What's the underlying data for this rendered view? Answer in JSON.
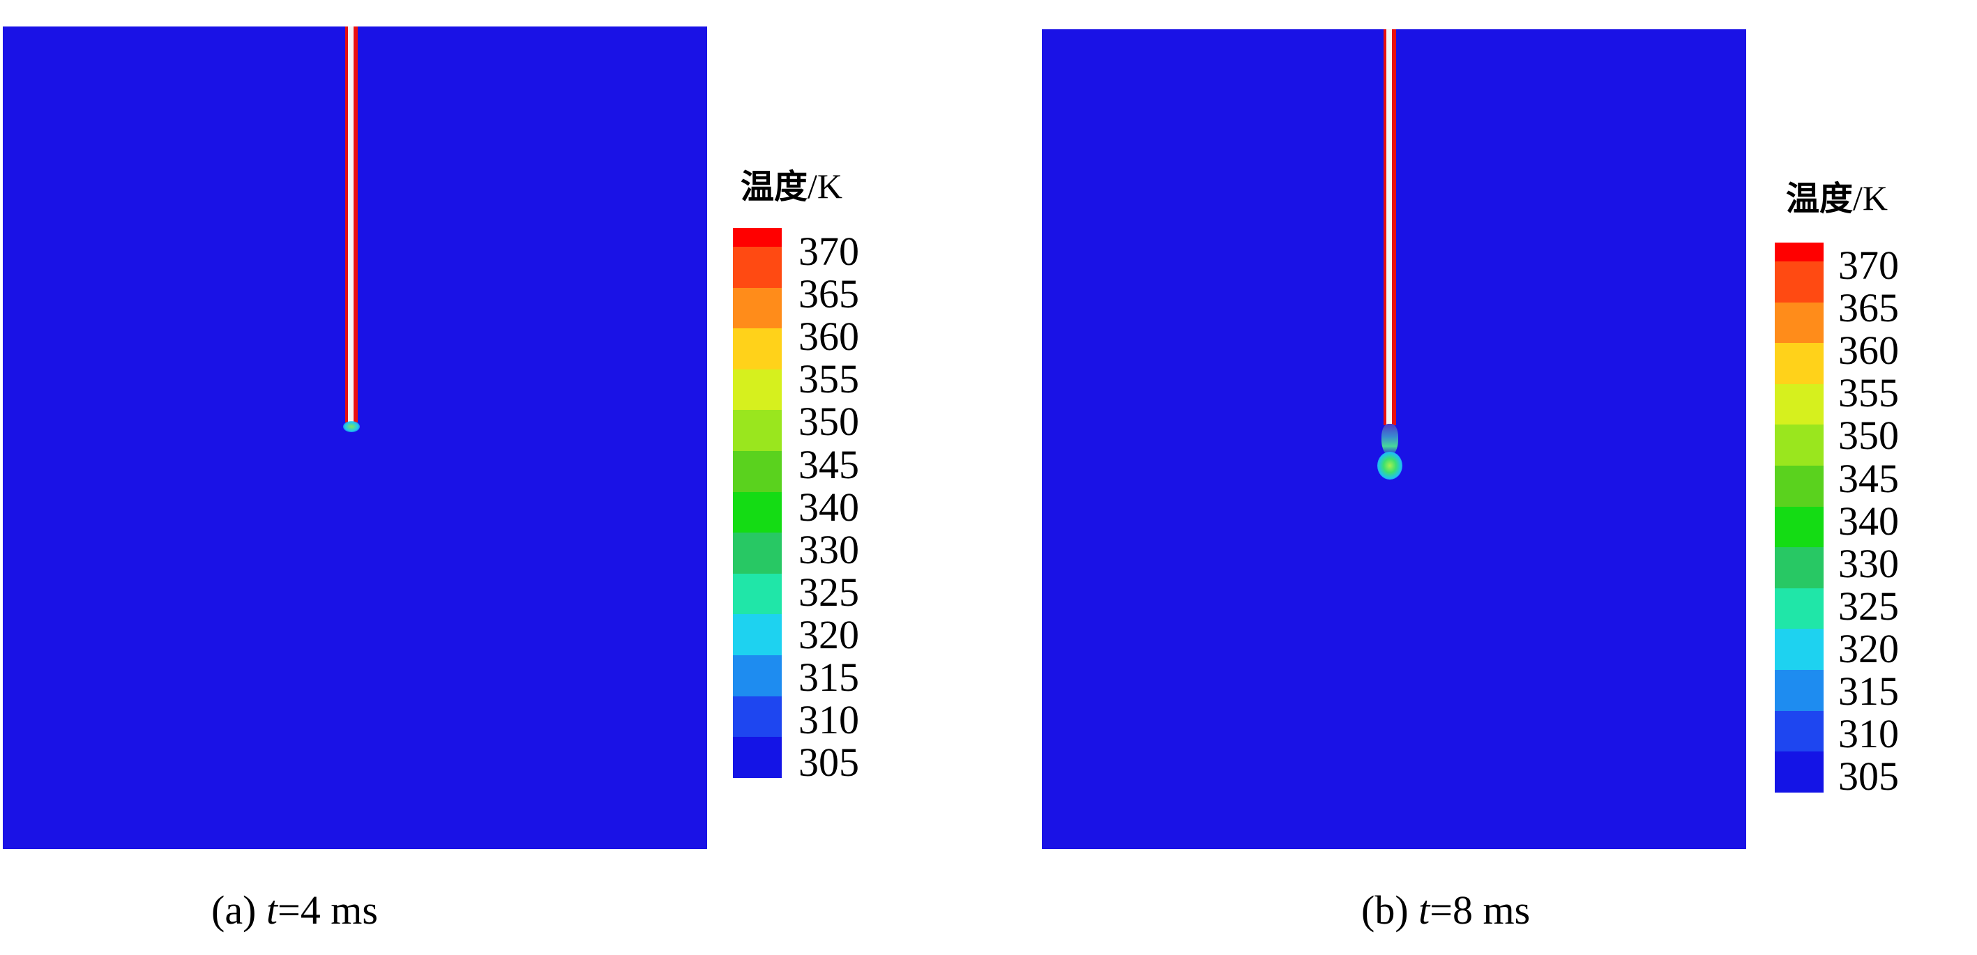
{
  "colorbar": {
    "title_cn": "温度",
    "title_unit": "/K",
    "levels": [
      "370",
      "365",
      "360",
      "355",
      "350",
      "345",
      "340",
      "330",
      "325",
      "320",
      "315",
      "310",
      "305"
    ],
    "colors": [
      "#ff0000",
      "#ff4a12",
      "#ff8c1a",
      "#ffd21a",
      "#d6f01e",
      "#9ae61e",
      "#5ad21e",
      "#14dc14",
      "#28c864",
      "#20e6a8",
      "#1ed2f0",
      "#1e8cf0",
      "#1e46f0",
      "#1414e6"
    ]
  },
  "field_color": "#1a12e6",
  "panels": [
    {
      "id": "a",
      "caption_prefix": "(a) ",
      "caption_var": "t",
      "caption_rest": "=4 ms"
    },
    {
      "id": "b",
      "caption_prefix": "(b) ",
      "caption_var": "t",
      "caption_rest": "=8 ms"
    }
  ]
}
